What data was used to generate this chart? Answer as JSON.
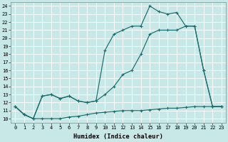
{
  "bg_color": "#c8e8e8",
  "line_color": "#1a6b6b",
  "grid_color": "#b0d8d8",
  "xlim": [
    -0.5,
    23.5
  ],
  "ylim": [
    9.5,
    24.5
  ],
  "xtick_labels": [
    "0",
    "1",
    "2",
    "3",
    "4",
    "5",
    "6",
    "7",
    "8",
    "9",
    "10",
    "11",
    "12",
    "13",
    "14",
    "15",
    "16",
    "17",
    "18",
    "19",
    "20",
    "21",
    "22",
    "23"
  ],
  "ytick_vals": [
    10,
    11,
    12,
    13,
    14,
    15,
    16,
    17,
    18,
    19,
    20,
    21,
    22,
    23,
    24
  ],
  "xlabel": "Humidex (Indice chaleur)",
  "line1_x": [
    0,
    1,
    2,
    3,
    4,
    5,
    6,
    7,
    8,
    9,
    10,
    11,
    12,
    13,
    14,
    15,
    16,
    17,
    18,
    19,
    20,
    21,
    22,
    23
  ],
  "line1_y": [
    11.5,
    10.5,
    10.0,
    10.0,
    10.0,
    10.0,
    10.2,
    10.3,
    10.5,
    10.7,
    10.8,
    10.9,
    11.0,
    11.0,
    11.0,
    11.1,
    11.2,
    11.3,
    11.3,
    11.4,
    11.5,
    11.5,
    11.5,
    11.5
  ],
  "line2_x": [
    0,
    1,
    2,
    3,
    4,
    5,
    6,
    7,
    8,
    9,
    10,
    11,
    12,
    13,
    14,
    15,
    16,
    17,
    18,
    19,
    20,
    21,
    22,
    23
  ],
  "line2_y": [
    11.5,
    10.5,
    10.0,
    12.8,
    13.0,
    12.5,
    12.8,
    12.2,
    12.0,
    12.2,
    13.0,
    14.0,
    15.5,
    16.0,
    18.0,
    20.5,
    21.0,
    21.0,
    21.0,
    21.5,
    21.5,
    16.0,
    11.5,
    11.5
  ],
  "line3_x": [
    0,
    1,
    2,
    3,
    4,
    5,
    6,
    7,
    8,
    9,
    10,
    11,
    12,
    13,
    14,
    15,
    16,
    17,
    18,
    19,
    20,
    21,
    22,
    23
  ],
  "line3_y": [
    11.5,
    10.5,
    10.0,
    12.8,
    13.0,
    12.5,
    12.8,
    12.2,
    12.0,
    12.2,
    18.5,
    20.5,
    21.0,
    21.5,
    21.5,
    24.0,
    23.3,
    23.0,
    23.2,
    21.5,
    21.5,
    16.0,
    11.5,
    11.5
  ]
}
